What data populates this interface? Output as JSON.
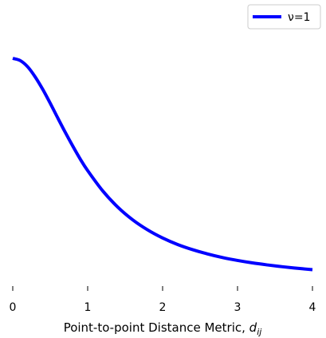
{
  "chart_data": {
    "type": "line",
    "title": "",
    "xlabel": {
      "main": "Point-to-point Distance Metric, ",
      "symbol": "d",
      "subscript": "ij"
    },
    "ylabel": "",
    "xlim": [
      0,
      4
    ],
    "ylim": [
      0,
      1
    ],
    "x_ticks": [
      0,
      1,
      2,
      3,
      4
    ],
    "x_tick_labels": [
      "0",
      "1",
      "2",
      "3",
      "4"
    ],
    "y_ticks_visible": false,
    "grid": false,
    "legend": {
      "position": "top-right",
      "entries": [
        {
          "label": "ν=1",
          "color": "#0000ff"
        }
      ]
    },
    "series": [
      {
        "name": "ν=1",
        "color": "#0000ff",
        "x": [
          0,
          0.1,
          0.2,
          0.3,
          0.4,
          0.5,
          0.6,
          0.7,
          0.8,
          0.9,
          1.0,
          1.2,
          1.4,
          1.6,
          1.8,
          2.0,
          2.2,
          2.4,
          2.6,
          2.8,
          3.0,
          3.2,
          3.4,
          3.6,
          3.8,
          4.0
        ],
        "y": [
          1.0,
          0.99,
          0.962,
          0.917,
          0.862,
          0.8,
          0.735,
          0.671,
          0.61,
          0.552,
          0.5,
          0.41,
          0.338,
          0.281,
          0.236,
          0.2,
          0.171,
          0.148,
          0.129,
          0.113,
          0.1,
          0.089,
          0.08,
          0.072,
          0.065,
          0.059
        ]
      }
    ]
  }
}
